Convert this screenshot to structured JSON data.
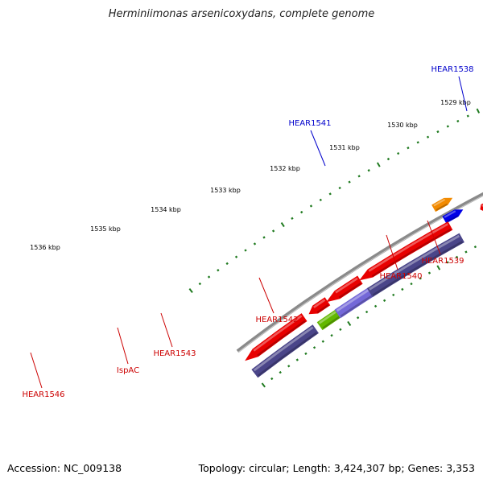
{
  "title": "Herminiimonas arsenicoxydans, complete genome",
  "footer": {
    "accession": "Accession: NC_009138",
    "summary": "Topology: circular; Length: 3,424,307 bp; Genes: 3,353"
  },
  "colors": {
    "backbone": "#8a8a8a",
    "tick": "#1f7a1f",
    "tick_label": "#000000",
    "red_gene": "#e80000",
    "slate_gene": "#4a4589",
    "blue_gene": "#0000e6",
    "orange_gene": "#f28a00",
    "magenta_gene": "#ff1f8f",
    "purple_gene": "#7468d8",
    "green_gene": "#63b800",
    "forward_label": "#0000cc",
    "reverse_label": "#cc0000"
  },
  "tick_labels": [
    {
      "text": "1529 kbp"
    },
    {
      "text": "1530 kbp"
    },
    {
      "text": "1531 kbp"
    },
    {
      "text": "1532 kbp"
    },
    {
      "text": "1533 kbp"
    },
    {
      "text": "1534 kbp"
    },
    {
      "text": "1535 kbp"
    },
    {
      "text": "1536 kbp"
    }
  ],
  "gene_labels": [
    {
      "text": "HEAR1538",
      "strand": "forward"
    },
    {
      "text": "HEAR1541",
      "strand": "forward"
    },
    {
      "text": "HEAR1539",
      "strand": "reverse"
    },
    {
      "text": "HEAR1540",
      "strand": "reverse"
    },
    {
      "text": "HEAR1542",
      "strand": "reverse"
    },
    {
      "text": "HEAR1543",
      "strand": "reverse"
    },
    {
      "text": "IspAC",
      "strand": "reverse"
    },
    {
      "text": "HEAR1546",
      "strand": "reverse"
    }
  ]
}
